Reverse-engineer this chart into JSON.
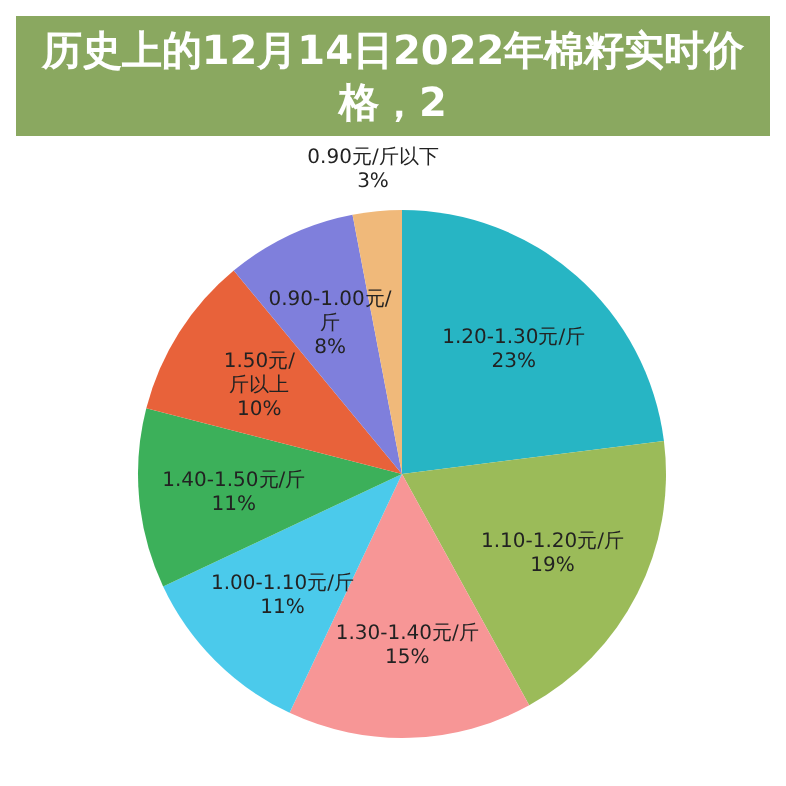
{
  "chart_data": {
    "type": "pie",
    "title": "历史上的12月14日2022年棉籽实时价格，2",
    "categories": [
      "1.20-1.30元/斤",
      "1.10-1.20元/斤",
      "1.30-1.40元/斤",
      "1.00-1.10元/斤",
      "1.40-1.50元/斤",
      "1.50元/斤以上",
      "0.90-1.00元/斤",
      "0.90元/斤以下"
    ],
    "values": [
      23,
      19,
      15,
      11,
      11,
      10,
      8,
      3
    ],
    "colors": [
      "#27b5c4",
      "#9bbb59",
      "#f79696",
      "#4bcaeb",
      "#3cb05a",
      "#e8623a",
      "#7f7fdc",
      "#f0b97a"
    ],
    "value_labels": [
      "23%",
      "19%",
      "15%",
      "11%",
      "11%",
      "10%",
      "8%",
      "3%"
    ],
    "legend": false
  }
}
